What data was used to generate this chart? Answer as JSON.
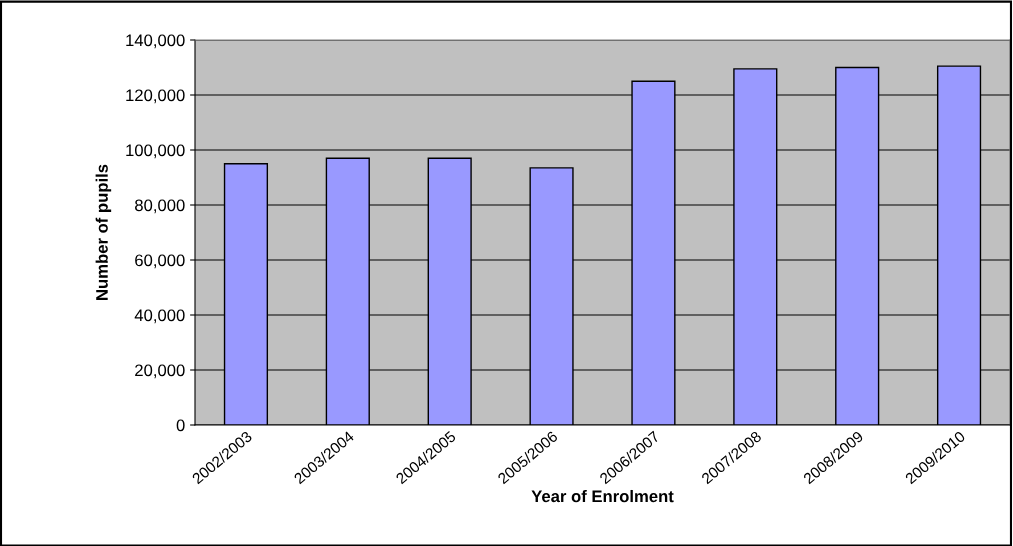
{
  "chart_data": {
    "type": "bar",
    "xlabel": "Year of Enrolment",
    "ylabel": "Number of pupils",
    "categories": [
      "2002/2003",
      "2003/2004",
      "2004/2005",
      "2005/2006",
      "2006/2007",
      "2007/2008",
      "2008/2009",
      "2009/2010"
    ],
    "values": [
      95000,
      97000,
      97000,
      93500,
      125000,
      129500,
      130000,
      130500
    ],
    "color": "#9999ff",
    "ylim": [
      0,
      140000
    ],
    "yticks": [
      {
        "value": 0,
        "label": "0"
      },
      {
        "value": 20000,
        "label": "20,000"
      },
      {
        "value": 40000,
        "label": "40,000"
      },
      {
        "value": 60000,
        "label": "60,000"
      },
      {
        "value": 80000,
        "label": "80,000"
      },
      {
        "value": 100000,
        "label": "100,000"
      },
      {
        "value": 120000,
        "label": "120,000"
      },
      {
        "value": 140000,
        "label": "140,000"
      }
    ],
    "grid": "y",
    "legend": false
  }
}
